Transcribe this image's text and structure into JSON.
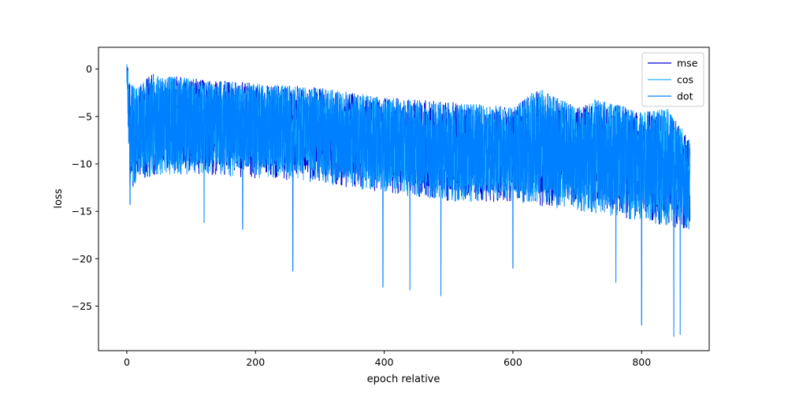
{
  "chart_data": {
    "type": "line",
    "title": "",
    "xlabel": "epoch relative",
    "ylabel": "loss",
    "xlim": [
      -44,
      905
    ],
    "ylim": [
      -29.7,
      2.3
    ],
    "xticks": [
      0,
      200,
      400,
      600,
      800
    ],
    "yticks": [
      0,
      -5,
      -10,
      -15,
      -20,
      -25
    ],
    "x_range": [
      0,
      875
    ],
    "legend": "top-right",
    "grid": false,
    "series": [
      {
        "name": "mse",
        "color": "#0000cd",
        "upper_envelope": [
          [
            0,
            0.9
          ],
          [
            5,
            -1.5
          ],
          [
            15,
            -2.0
          ],
          [
            40,
            -0.5
          ],
          [
            100,
            -1.0
          ],
          [
            200,
            -1.5
          ],
          [
            300,
            -2.0
          ],
          [
            400,
            -3.0
          ],
          [
            500,
            -3.5
          ],
          [
            600,
            -4.0
          ],
          [
            640,
            -2.2
          ],
          [
            700,
            -4.0
          ],
          [
            730,
            -3.2
          ],
          [
            800,
            -4.5
          ],
          [
            840,
            -4.2
          ],
          [
            875,
            -7.5
          ]
        ],
        "lower_envelope": [
          [
            0,
            -2.0
          ],
          [
            5,
            -13.0
          ],
          [
            20,
            -11.5
          ],
          [
            100,
            -11.0
          ],
          [
            200,
            -11.5
          ],
          [
            300,
            -12.0
          ],
          [
            400,
            -13.0
          ],
          [
            500,
            -14.0
          ],
          [
            600,
            -14.0
          ],
          [
            700,
            -15.0
          ],
          [
            800,
            -16.0
          ],
          [
            875,
            -17.0
          ]
        ]
      },
      {
        "name": "cos",
        "color": "#1eb4ff",
        "upper_envelope": [
          [
            0,
            0.9
          ],
          [
            5,
            -1.5
          ],
          [
            15,
            -2.0
          ],
          [
            40,
            -0.5
          ],
          [
            100,
            -1.0
          ],
          [
            200,
            -1.5
          ],
          [
            300,
            -2.0
          ],
          [
            400,
            -3.0
          ],
          [
            500,
            -3.5
          ],
          [
            600,
            -4.0
          ],
          [
            640,
            -2.0
          ],
          [
            700,
            -4.0
          ],
          [
            730,
            -3.0
          ],
          [
            800,
            -4.5
          ],
          [
            840,
            -4.0
          ],
          [
            875,
            -7.5
          ]
        ],
        "lower_envelope": [
          [
            0,
            -2.0
          ],
          [
            5,
            -13.0
          ],
          [
            20,
            -11.5
          ],
          [
            100,
            -11.0
          ],
          [
            200,
            -11.5
          ],
          [
            300,
            -12.0
          ],
          [
            400,
            -13.0
          ],
          [
            500,
            -14.0
          ],
          [
            600,
            -14.0
          ],
          [
            700,
            -15.0
          ],
          [
            800,
            -16.0
          ],
          [
            875,
            -17.0
          ]
        ]
      },
      {
        "name": "dot",
        "color": "#0080ff",
        "upper_envelope": [
          [
            0,
            0.9
          ],
          [
            5,
            -1.5
          ],
          [
            15,
            -2.0
          ],
          [
            40,
            -0.5
          ],
          [
            100,
            -1.0
          ],
          [
            200,
            -1.5
          ],
          [
            300,
            -2.0
          ],
          [
            400,
            -3.0
          ],
          [
            500,
            -3.5
          ],
          [
            600,
            -4.0
          ],
          [
            640,
            -2.2
          ],
          [
            700,
            -4.0
          ],
          [
            730,
            -3.2
          ],
          [
            800,
            -4.5
          ],
          [
            840,
            -4.2
          ],
          [
            875,
            -7.5
          ]
        ],
        "lower_envelope": [
          [
            0,
            -2.0
          ],
          [
            5,
            -13.0
          ],
          [
            20,
            -11.5
          ],
          [
            100,
            -11.0
          ],
          [
            200,
            -11.5
          ],
          [
            300,
            -12.0
          ],
          [
            400,
            -13.0
          ],
          [
            500,
            -14.0
          ],
          [
            600,
            -14.0
          ],
          [
            700,
            -15.0
          ],
          [
            800,
            -16.0
          ],
          [
            875,
            -17.0
          ]
        ],
        "notable_minima": [
          [
            5,
            -14.3
          ],
          [
            120,
            -16.2
          ],
          [
            180,
            -16.9
          ],
          [
            258,
            -21.3
          ],
          [
            398,
            -23.0
          ],
          [
            440,
            -23.3
          ],
          [
            488,
            -23.9
          ],
          [
            600,
            -21.0
          ],
          [
            760,
            -22.5
          ],
          [
            800,
            -27.0
          ],
          [
            850,
            -28.2
          ],
          [
            860,
            -28.0
          ]
        ]
      }
    ]
  }
}
